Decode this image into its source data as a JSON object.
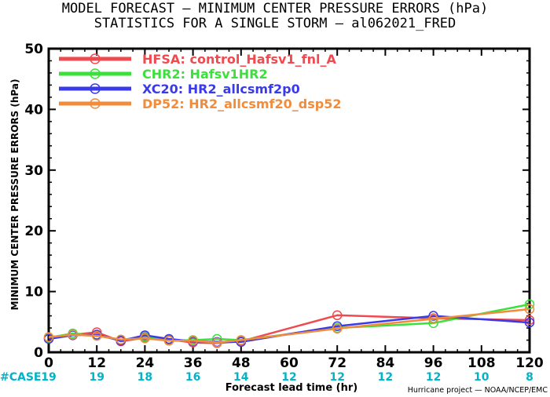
{
  "chart_data": {
    "type": "line",
    "title": "MODEL FORECAST — MINIMUM CENTER PRESSURE ERRORS (hPa)",
    "subtitle": "STATISTICS FOR A SINGLE STORM — al062021_FRED",
    "xlabel": "Forecast lead time (hr)",
    "ylabel": "MINIMUM CENTER PRESSURE ERRORS (hPa)",
    "xlim": [
      0,
      120
    ],
    "ylim": [
      0,
      50
    ],
    "xticks": [
      0,
      12,
      24,
      36,
      48,
      60,
      72,
      84,
      96,
      108,
      120
    ],
    "yticks": [
      0,
      10,
      20,
      30,
      40,
      50
    ],
    "legend_position": "top-left",
    "case_label": "#CASE",
    "cases": [
      {
        "x": 0,
        "n": "19"
      },
      {
        "x": 12,
        "n": "19"
      },
      {
        "x": 24,
        "n": "18"
      },
      {
        "x": 36,
        "n": "16"
      },
      {
        "x": 48,
        "n": "14"
      },
      {
        "x": 60,
        "n": "12"
      },
      {
        "x": 72,
        "n": "12"
      },
      {
        "x": 84,
        "n": "12"
      },
      {
        "x": 96,
        "n": "12"
      },
      {
        "x": 108,
        "n": "10"
      },
      {
        "x": 120,
        "n": "8"
      }
    ],
    "credit": "Hurricane project — NOAA/NCEP/EMC",
    "series": [
      {
        "name": "HFSA: control_Hafsv1_fnl_A",
        "color": "#ef4a4f",
        "x": [
          0,
          6,
          12,
          18,
          24,
          30,
          36,
          42,
          48,
          72,
          96,
          120
        ],
        "y": [
          2.3,
          2.9,
          3.3,
          1.8,
          2.4,
          2.1,
          1.6,
          1.5,
          1.8,
          6.1,
          5.6,
          5.3
        ]
      },
      {
        "name": "CHR2: Hafsv1HR2",
        "color": "#3ce03c",
        "x": [
          0,
          6,
          12,
          18,
          24,
          30,
          36,
          42,
          48,
          72,
          96,
          120
        ],
        "y": [
          2.4,
          3.1,
          2.8,
          2.0,
          2.6,
          1.9,
          2.0,
          2.2,
          2.0,
          4.0,
          4.8,
          7.9
        ]
      },
      {
        "name": "XC20: HR2_allcsmf2p0",
        "color": "#3a3ae8",
        "x": [
          0,
          6,
          12,
          18,
          24,
          30,
          36,
          42,
          48,
          72,
          96,
          120
        ],
        "y": [
          2.2,
          2.8,
          2.9,
          1.9,
          2.8,
          2.2,
          1.8,
          1.7,
          1.7,
          4.3,
          6.0,
          4.9
        ]
      },
      {
        "name": "DP52: HR2_allcsmf20_dsp52",
        "color": "#f08c3c",
        "x": [
          0,
          6,
          12,
          18,
          24,
          30,
          36,
          42,
          48,
          72,
          96,
          120
        ],
        "y": [
          2.5,
          2.9,
          2.7,
          2.1,
          2.3,
          1.9,
          1.9,
          1.6,
          2.0,
          3.9,
          5.5,
          7.1
        ]
      }
    ]
  }
}
